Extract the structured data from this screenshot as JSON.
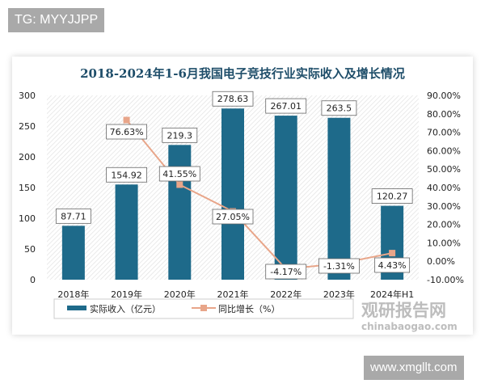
{
  "top_tag": "TG: MYYJJPP",
  "bottom_tag": "www.xmgllt.com",
  "watermark": {
    "name": "观研报告网",
    "url": "chinabaogao.com"
  },
  "colors": {
    "bar": "#1e6a8a",
    "line": "#e8a589",
    "title": "#1f4e6a"
  },
  "chart_data": {
    "type": "bar+line",
    "title": "2018-2024年1-6月我国电子竞技行业实际收入及增长情况",
    "categories": [
      "2018年",
      "2019年",
      "2020年",
      "2021年",
      "2022年",
      "2023年",
      "2024年H1"
    ],
    "series": [
      {
        "name": "实际收入（亿元）",
        "type": "bar",
        "axis": "left",
        "values": [
          87.71,
          154.92,
          219.3,
          278.63,
          267.01,
          263.5,
          120.27
        ],
        "labels": [
          "87.71",
          "154.92",
          "219.3",
          "278.63",
          "267.01",
          "263.5",
          "120.27"
        ]
      },
      {
        "name": "同比增长（%）",
        "type": "line",
        "axis": "right",
        "values": [
          null,
          76.63,
          41.55,
          27.05,
          -4.17,
          -1.31,
          4.43
        ],
        "labels": [
          "",
          "76.63%",
          "41.55%",
          "27.05%",
          "-4.17%",
          "-1.31%",
          "4.43%"
        ]
      }
    ],
    "ylim_left": [
      0,
      300
    ],
    "yticks_left": [
      "0",
      "50",
      "100",
      "150",
      "200",
      "250",
      "300"
    ],
    "ylim_right": [
      -10,
      90
    ],
    "yticks_right": [
      "-10.00%",
      "0.00%",
      "10.00%",
      "20.00%",
      "30.00%",
      "40.00%",
      "50.00%",
      "60.00%",
      "70.00%",
      "80.00%",
      "90.00%"
    ],
    "legend": "bottom"
  }
}
